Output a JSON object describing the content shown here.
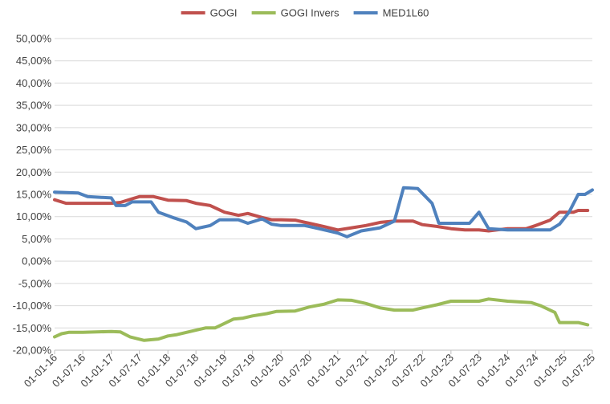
{
  "chart_data": {
    "type": "line",
    "title": "",
    "xlabel": "",
    "ylabel": "",
    "ylim": [
      -0.2,
      0.5
    ],
    "y_ticks": [
      -0.2,
      -0.15,
      -0.1,
      -0.05,
      0.0,
      0.05,
      0.1,
      0.15,
      0.2,
      0.25,
      0.3,
      0.35,
      0.4,
      0.45,
      0.5
    ],
    "y_tick_labels": [
      "-20,00%",
      "-15,00%",
      "-10,00%",
      "-5,00%",
      "0,00%",
      "5,00%",
      "10,00%",
      "15,00%",
      "20,00%",
      "25,00%",
      "30,00%",
      "35,00%",
      "40,00%",
      "45,00%",
      "50,00%"
    ],
    "x_range": [
      "2016-01-01",
      "2025-07-01"
    ],
    "x_ticks": [
      "2016-01-01",
      "2016-07-01",
      "2017-01-01",
      "2017-07-01",
      "2018-01-01",
      "2018-07-01",
      "2019-01-01",
      "2019-07-01",
      "2020-01-01",
      "2020-07-01",
      "2021-01-01",
      "2021-07-01",
      "2022-01-01",
      "2022-07-01",
      "2023-01-01",
      "2023-07-01",
      "2024-01-01",
      "2024-07-01",
      "2025-01-01",
      "2025-07-01"
    ],
    "x_tick_labels": [
      "01-01-16",
      "01-07-16",
      "01-01-17",
      "01-07-17",
      "01-01-18",
      "01-07-18",
      "01-01-19",
      "01-07-19",
      "01-01-20",
      "01-07-20",
      "01-01-21",
      "01-07-21",
      "01-01-22",
      "01-07-22",
      "01-01-23",
      "01-07-23",
      "01-01-24",
      "01-07-24",
      "01-01-25",
      "01-07-25"
    ],
    "grid": "horizontal",
    "legend_position": "top",
    "series": [
      {
        "name": "GOGI",
        "color": "#c0504d",
        "points": [
          [
            "2016-01-01",
            0.138
          ],
          [
            "2016-03-15",
            0.13
          ],
          [
            "2016-07-01",
            0.13
          ],
          [
            "2017-01-01",
            0.13
          ],
          [
            "2017-03-01",
            0.132
          ],
          [
            "2017-05-15",
            0.14
          ],
          [
            "2017-07-01",
            0.145
          ],
          [
            "2017-10-01",
            0.145
          ],
          [
            "2018-01-01",
            0.137
          ],
          [
            "2018-05-01",
            0.136
          ],
          [
            "2018-07-01",
            0.13
          ],
          [
            "2018-10-01",
            0.125
          ],
          [
            "2019-01-01",
            0.11
          ],
          [
            "2019-04-01",
            0.103
          ],
          [
            "2019-06-01",
            0.107
          ],
          [
            "2019-09-01",
            0.098
          ],
          [
            "2019-11-01",
            0.093
          ],
          [
            "2020-01-01",
            0.093
          ],
          [
            "2020-04-01",
            0.092
          ],
          [
            "2020-07-01",
            0.085
          ],
          [
            "2020-10-01",
            0.078
          ],
          [
            "2021-01-01",
            0.07
          ],
          [
            "2021-04-01",
            0.075
          ],
          [
            "2021-07-01",
            0.08
          ],
          [
            "2021-10-01",
            0.087
          ],
          [
            "2022-01-01",
            0.09
          ],
          [
            "2022-05-01",
            0.09
          ],
          [
            "2022-07-01",
            0.082
          ],
          [
            "2022-10-01",
            0.078
          ],
          [
            "2023-01-01",
            0.073
          ],
          [
            "2023-04-01",
            0.07
          ],
          [
            "2023-07-01",
            0.07
          ],
          [
            "2023-09-01",
            0.068
          ],
          [
            "2024-01-01",
            0.073
          ],
          [
            "2024-05-01",
            0.073
          ],
          [
            "2024-07-01",
            0.08
          ],
          [
            "2024-10-01",
            0.092
          ],
          [
            "2024-12-01",
            0.11
          ],
          [
            "2025-03-01",
            0.11
          ],
          [
            "2025-04-01",
            0.114
          ],
          [
            "2025-06-01",
            0.114
          ]
        ]
      },
      {
        "name": "GOGI Invers",
        "color": "#9bbb59",
        "points": [
          [
            "2016-01-01",
            -0.17
          ],
          [
            "2016-02-15",
            -0.163
          ],
          [
            "2016-04-01",
            -0.16
          ],
          [
            "2016-07-01",
            -0.16
          ],
          [
            "2017-01-01",
            -0.158
          ],
          [
            "2017-03-01",
            -0.159
          ],
          [
            "2017-05-01",
            -0.17
          ],
          [
            "2017-08-01",
            -0.178
          ],
          [
            "2017-11-01",
            -0.175
          ],
          [
            "2018-01-01",
            -0.168
          ],
          [
            "2018-03-01",
            -0.165
          ],
          [
            "2018-07-01",
            -0.155
          ],
          [
            "2018-09-01",
            -0.15
          ],
          [
            "2018-11-01",
            -0.15
          ],
          [
            "2019-01-01",
            -0.14
          ],
          [
            "2019-03-01",
            -0.13
          ],
          [
            "2019-05-01",
            -0.128
          ],
          [
            "2019-07-01",
            -0.123
          ],
          [
            "2019-10-01",
            -0.118
          ],
          [
            "2019-12-01",
            -0.113
          ],
          [
            "2020-04-01",
            -0.112
          ],
          [
            "2020-07-01",
            -0.103
          ],
          [
            "2020-10-01",
            -0.097
          ],
          [
            "2021-01-01",
            -0.087
          ],
          [
            "2021-04-01",
            -0.088
          ],
          [
            "2021-07-01",
            -0.095
          ],
          [
            "2021-10-01",
            -0.105
          ],
          [
            "2022-01-01",
            -0.11
          ],
          [
            "2022-05-01",
            -0.11
          ],
          [
            "2022-07-01",
            -0.105
          ],
          [
            "2022-10-01",
            -0.098
          ],
          [
            "2023-01-01",
            -0.09
          ],
          [
            "2023-07-01",
            -0.09
          ],
          [
            "2023-09-01",
            -0.085
          ],
          [
            "2024-01-01",
            -0.09
          ],
          [
            "2024-06-01",
            -0.093
          ],
          [
            "2024-08-01",
            -0.1
          ],
          [
            "2024-11-01",
            -0.115
          ],
          [
            "2024-12-01",
            -0.138
          ],
          [
            "2025-04-01",
            -0.138
          ],
          [
            "2025-06-01",
            -0.143
          ]
        ]
      },
      {
        "name": "MED1L60",
        "color": "#4f81bd",
        "points": [
          [
            "2016-01-01",
            0.155
          ],
          [
            "2016-06-01",
            0.153
          ],
          [
            "2016-08-01",
            0.145
          ],
          [
            "2017-01-01",
            0.142
          ],
          [
            "2017-02-01",
            0.125
          ],
          [
            "2017-04-01",
            0.125
          ],
          [
            "2017-05-15",
            0.133
          ],
          [
            "2017-09-15",
            0.133
          ],
          [
            "2017-11-01",
            0.11
          ],
          [
            "2018-02-01",
            0.098
          ],
          [
            "2018-05-01",
            0.088
          ],
          [
            "2018-07-01",
            0.073
          ],
          [
            "2018-10-01",
            0.08
          ],
          [
            "2018-12-01",
            0.093
          ],
          [
            "2019-04-01",
            0.093
          ],
          [
            "2019-06-01",
            0.085
          ],
          [
            "2019-09-01",
            0.095
          ],
          [
            "2019-11-01",
            0.083
          ],
          [
            "2020-01-01",
            0.08
          ],
          [
            "2020-06-01",
            0.08
          ],
          [
            "2020-09-01",
            0.073
          ],
          [
            "2021-01-01",
            0.063
          ],
          [
            "2021-03-01",
            0.055
          ],
          [
            "2021-06-01",
            0.068
          ],
          [
            "2021-10-01",
            0.075
          ],
          [
            "2022-01-01",
            0.09
          ],
          [
            "2022-03-01",
            0.165
          ],
          [
            "2022-06-01",
            0.163
          ],
          [
            "2022-09-01",
            0.13
          ],
          [
            "2022-10-15",
            0.085
          ],
          [
            "2023-01-01",
            0.085
          ],
          [
            "2023-05-01",
            0.085
          ],
          [
            "2023-07-01",
            0.11
          ],
          [
            "2023-09-01",
            0.073
          ],
          [
            "2024-01-01",
            0.07
          ],
          [
            "2024-10-01",
            0.07
          ],
          [
            "2024-12-01",
            0.083
          ],
          [
            "2025-02-01",
            0.11
          ],
          [
            "2025-04-01",
            0.15
          ],
          [
            "2025-05-15",
            0.15
          ],
          [
            "2025-07-01",
            0.16
          ]
        ]
      }
    ]
  }
}
